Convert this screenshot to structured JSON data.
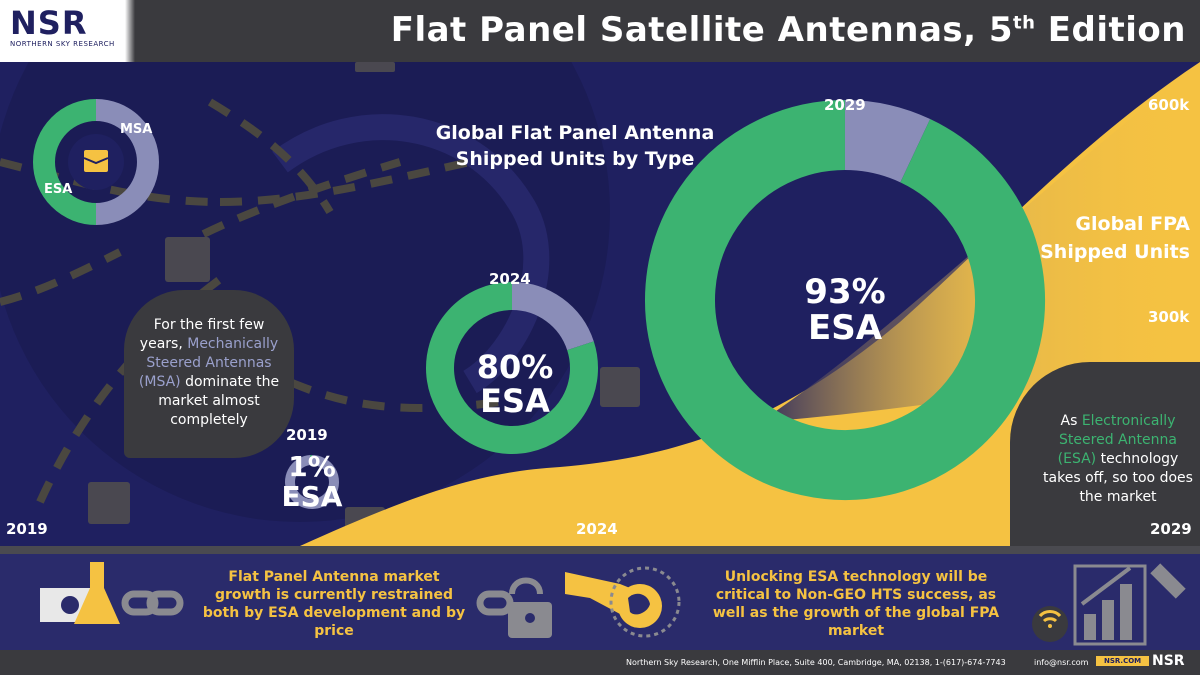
{
  "header": {
    "logo_text": "NSR",
    "logo_subtitle": "NORTHERN SKY RESEARCH",
    "title_main": "Flat Panel Satellite Antennas, 5",
    "title_sup": "th",
    "title_end": " Edition"
  },
  "chart_data": [
    {
      "type": "pie",
      "title": "Global Flat Panel Antenna Shipped Units by Type",
      "legend": [
        "MSA",
        "ESA"
      ],
      "series": [
        {
          "name": "2019",
          "values": [
            {
              "label": "ESA",
              "value": 1
            },
            {
              "label": "MSA",
              "value": 99
            }
          ],
          "center_label": "1%",
          "center_sub": "ESA"
        },
        {
          "name": "2024",
          "values": [
            {
              "label": "ESA",
              "value": 80
            },
            {
              "label": "MSA",
              "value": 20
            }
          ],
          "center_label": "80%",
          "center_sub": "ESA"
        },
        {
          "name": "2029",
          "values": [
            {
              "label": "ESA",
              "value": 93
            },
            {
              "label": "MSA",
              "value": 7
            }
          ],
          "center_label": "93%",
          "center_sub": "ESA"
        }
      ]
    },
    {
      "type": "area",
      "title": "Global FPA Shipped Units",
      "x": [
        "2019",
        "2024",
        "2029"
      ],
      "ytick_labels": [
        "300k",
        "600k"
      ]
    }
  ],
  "legend_labels": {
    "msa": "MSA",
    "esa": "ESA"
  },
  "donut_years": {
    "y2019": "2019",
    "y2024": "2024",
    "y2029": "2029"
  },
  "axis": {
    "x_2019": "2019",
    "x_2024": "2024",
    "x_2029": "2029",
    "y_600": "600k",
    "y_300": "300k"
  },
  "chart_title_line1": "Global Flat Panel Antenna",
  "chart_title_line2": "Shipped Units by Type",
  "area_title_line1": "Global FPA",
  "area_title_line2": "Shipped Units",
  "callout_left": {
    "part1": "For the first few years, ",
    "highlight": "Mechanically Steered Antennas (MSA)",
    "part2": " dominate the market almost completely"
  },
  "callout_right": {
    "part1": "As ",
    "highlight": "Electronically Steered Antenna (ESA)",
    "part2": " technology takes off, so too does the market"
  },
  "bottom": {
    "note_left": "Flat Panel Antenna market growth is currently restrained both by ESA development and by price",
    "note_right": "Unlocking ESA technology will be critical to Non-GEO HTS success, as well as the growth of the global FPA market"
  },
  "footer": {
    "address": "Northern Sky Research, One Mifflin Place, Suite 400, Cambridge, MA, 02138, 1-(617)-674-7743",
    "email": "info@nsr.com",
    "web": "NSR.COM",
    "logo": "NSR"
  },
  "colors": {
    "esa": "#3cb371",
    "msa": "#8a8db8",
    "area": "#f5c242",
    "navy": "#1f2060"
  }
}
